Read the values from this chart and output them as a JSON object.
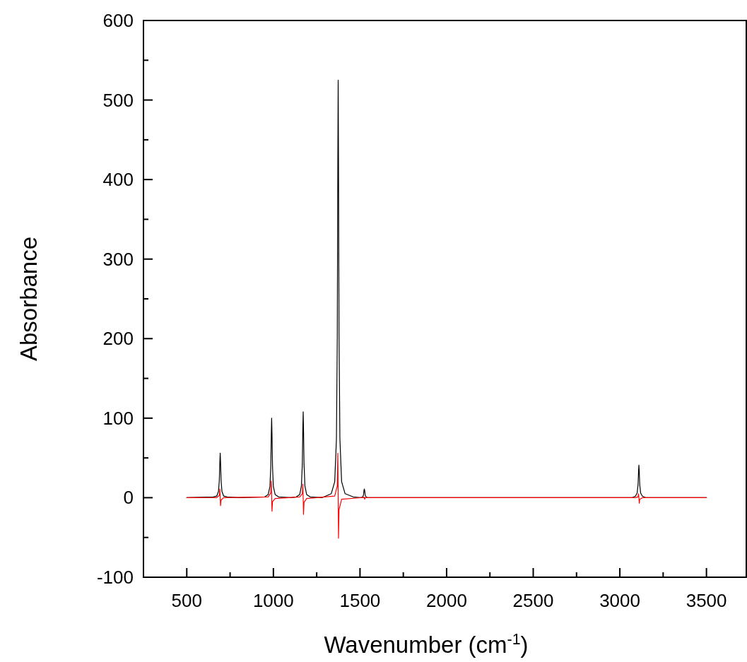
{
  "chart_data": {
    "type": "line",
    "xlabel": "Wavenumber (cm$^{-1}$)",
    "ylabel": "Absorbance",
    "xlim": [
      250,
      3730
    ],
    "ylim": [
      -100,
      600
    ],
    "xticks": [
      500,
      {
        "value": 750,
        "label": null
      },
      1000,
      {
        "value": 1250,
        "label": null
      },
      1500,
      {
        "value": 1750,
        "label": null
      },
      2000,
      {
        "value": 2250,
        "label": null
      },
      2500,
      {
        "value": 2750,
        "label": null
      },
      3000,
      {
        "value": 3250,
        "label": null
      },
      3500
    ],
    "yticks": [
      -100,
      {
        "value": -50,
        "label": null
      },
      0,
      {
        "value": 50,
        "label": null
      },
      100,
      {
        "value": 150,
        "label": null
      },
      200,
      {
        "value": 250,
        "label": null
      },
      300,
      {
        "value": 350,
        "label": null
      },
      400,
      {
        "value": 450,
        "label": null
      },
      500,
      {
        "value": 550,
        "label": null
      },
      600
    ],
    "grid": false,
    "marker": "none",
    "line_style": "solid",
    "series": [
      {
        "color": "#000000",
        "x": [
          500,
          653,
          673,
          683,
          688,
          691,
          693,
          695,
          698,
          703,
          713,
          733,
          800,
          950,
          970,
          980,
          985,
          988,
          990,
          992,
          995,
          1000,
          1010,
          1030,
          1100,
          1132,
          1152,
          1162,
          1167,
          1170,
          1172,
          1174,
          1177,
          1182,
          1192,
          1212,
          1280,
          1334,
          1354,
          1364,
          1369,
          1372,
          1374,
          1376,
          1379,
          1384,
          1394,
          1414,
          1460,
          1505,
          1515,
          1520,
          1523,
          1525,
          1527,
          1530,
          1535,
          1545,
          1700,
          3070,
          3090,
          3100,
          3105,
          3108,
          3110,
          3112,
          3115,
          3120,
          3130,
          3150,
          3500
        ],
        "values": [
          0,
          1,
          2,
          8,
          22,
          45,
          56,
          45,
          22,
          8,
          2,
          1,
          0,
          1,
          4,
          14,
          39,
          80,
          100,
          80,
          39,
          14,
          4,
          1,
          0,
          1,
          4,
          15,
          42,
          86,
          108,
          86,
          42,
          15,
          4,
          1,
          0,
          5,
          20,
          74,
          205,
          420,
          525,
          420,
          205,
          74,
          20,
          5,
          1,
          0,
          1,
          3,
          9,
          11,
          9,
          3,
          1,
          0,
          0,
          0,
          2,
          6,
          16,
          33,
          41,
          33,
          16,
          6,
          2,
          0,
          0
        ]
      },
      {
        "color": "#ff0000",
        "x": [
          500,
          673,
          688,
          691,
          693,
          695,
          698,
          713,
          970,
          985,
          988,
          990,
          992,
          995,
          1010,
          1152,
          1167,
          1170,
          1172,
          1174,
          1177,
          1192,
          1354,
          1369,
          1372,
          1374,
          1376,
          1379,
          1394,
          1505,
          1520,
          1523,
          1525,
          1527,
          1530,
          1545,
          3090,
          3105,
          3108,
          3110,
          3112,
          3115,
          3130,
          3500
        ],
        "values": [
          0,
          0,
          3,
          11,
          0,
          -10,
          -3,
          0,
          1,
          6,
          21,
          0,
          -17,
          -5,
          -1,
          1,
          5,
          17,
          0,
          -21,
          -6,
          -1,
          2,
          15,
          56,
          0,
          -51,
          -15,
          -2,
          0,
          0,
          1,
          0,
          -2,
          0,
          0,
          0,
          1,
          5,
          0,
          -7,
          -2,
          0,
          0
        ]
      }
    ]
  }
}
